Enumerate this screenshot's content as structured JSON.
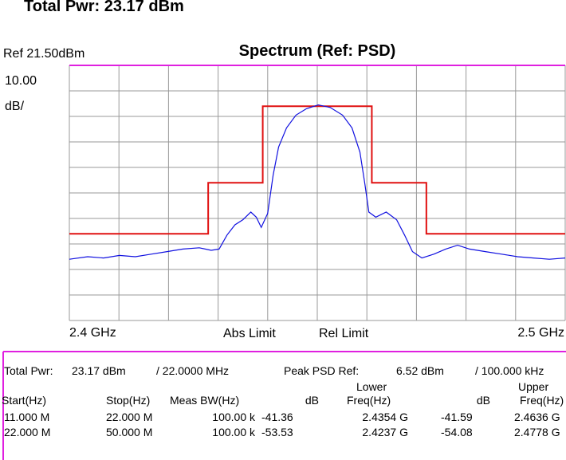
{
  "top_text": "Total Pwr:  23.17 dBm",
  "chart_data": {
    "type": "line",
    "title": "Spectrum (Ref: PSD)",
    "ref_label": "Ref 21.50dBm",
    "scale_label": [
      "10.00",
      "dB/"
    ],
    "xlim": [
      2.4,
      2.5
    ],
    "ylim": [
      -78.5,
      21.5
    ],
    "xticks": [
      {
        "value": 2.4,
        "label": "2.4 GHz"
      },
      {
        "value": 2.5,
        "label": "2.5 GHz"
      }
    ],
    "xgrid": [
      2.4,
      2.41,
      2.42,
      2.43,
      2.44,
      2.45,
      2.46,
      2.47,
      2.48,
      2.49,
      2.5
    ],
    "ygrid": [
      -78.5,
      -68.5,
      -58.5,
      -48.5,
      -38.5,
      -28.5,
      -18.5,
      -8.5,
      1.5,
      11.5,
      21.5
    ],
    "series": [
      {
        "name": "Abs Limit",
        "color": "#e020e0",
        "x": [
          2.4,
          2.5
        ],
        "values": [
          21.5,
          21.5
        ]
      },
      {
        "name": "Rel Limit",
        "color": "#e01010",
        "x": [
          2.4,
          2.428,
          2.428,
          2.439,
          2.439,
          2.461,
          2.461,
          2.472,
          2.472,
          2.5
        ],
        "values": [
          -44.5,
          -44.5,
          -24.5,
          -24.5,
          5.5,
          5.5,
          -24.5,
          -24.5,
          -44.5,
          -44.5
        ]
      },
      {
        "color": "#1010e0",
        "x": [
          2.4,
          2.4037,
          2.4069,
          2.4101,
          2.4133,
          2.4165,
          2.4197,
          2.4229,
          2.4262,
          2.4286,
          2.4302,
          2.4318,
          2.4334,
          2.435,
          2.4366,
          2.4377,
          2.4387,
          2.44,
          2.4411,
          2.4422,
          2.4438,
          2.4457,
          2.4478,
          2.4502,
          2.4526,
          2.4551,
          2.457,
          2.4586,
          2.4596,
          2.4604,
          2.4618,
          2.4639,
          2.466,
          2.4676,
          2.4692,
          2.4711,
          2.4735,
          2.4759,
          2.4783,
          2.4807,
          2.4839,
          2.4872,
          2.4904,
          2.4936,
          2.4968,
          2.5
        ],
        "values": [
          -54.5,
          -53.5,
          -54,
          -53,
          -53.5,
          -52.5,
          -51.5,
          -50.5,
          -50,
          -51,
          -50.5,
          -45,
          -41,
          -39,
          -36,
          -38,
          -42,
          -36.5,
          -21.5,
          -10.5,
          -3,
          2,
          4.5,
          6,
          5,
          2,
          -3,
          -12.5,
          -25,
          -36,
          -38,
          -36,
          -39,
          -45,
          -51.5,
          -54,
          -52.5,
          -50.5,
          -49,
          -50.5,
          -51.5,
          -52.5,
          -53.5,
          -54,
          -54.5,
          -54
        ]
      }
    ]
  },
  "results": {
    "summary": [
      "Total Pwr:",
      "23.17 dBm",
      "/ 22.0000 MHz",
      "Peak PSD Ref:",
      "6.52 dBm",
      "/ 100.000 kHz"
    ],
    "groups": [
      "Lower",
      "Upper"
    ],
    "columns": [
      "Start(Hz)",
      "Stop(Hz)",
      "Meas BW(Hz)",
      "dB",
      "Freq(Hz)",
      "dB",
      "Freq(Hz)"
    ],
    "rows": [
      [
        "11.000 M",
        "22.000 M",
        "100.00 k",
        "-41.36",
        "2.4354 G",
        "-41.59",
        "2.4636 G"
      ],
      [
        "22.000 M",
        "50.000 M",
        "100.00 k",
        "-53.53",
        "2.4237 G",
        "-54.08",
        "2.4778 G"
      ]
    ]
  }
}
